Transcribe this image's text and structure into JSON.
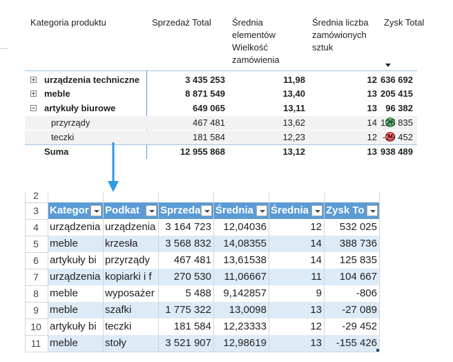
{
  "pivot": {
    "headers": {
      "category": "Kategoria produktu",
      "sales": "Sprzedaż Total",
      "avg_items_l1": "Średnia",
      "avg_items_l2": "elementów",
      "avg_items_l3": "Wielkość",
      "avg_items_l4": "zamówienia",
      "avg_orders_l1": "Średnia liczba",
      "avg_orders_l2": "zamówionych",
      "avg_orders_l3": "sztuk",
      "profit": "Zysk Total"
    },
    "rows": [
      {
        "label": "urządzenia techniczne",
        "sales": "3 435 253",
        "avg_items": "11,98",
        "avg_orders": "12",
        "profit": "636 692"
      },
      {
        "label": "meble",
        "sales": "8 871 549",
        "avg_items": "13,40",
        "avg_orders": "13",
        "profit": "205 415"
      },
      {
        "label": "artykuły biurowe",
        "sales": "649 065",
        "avg_items": "13,11",
        "avg_orders": "13",
        "profit": "96 382"
      },
      {
        "label": "przyrządy",
        "sales": "467 481",
        "avg_items": "13,62",
        "avg_orders": "14",
        "profit": "125 835",
        "kpi": "up-icon"
      },
      {
        "label": "teczki",
        "sales": "181 584",
        "avg_items": "12,23",
        "avg_orders": "12",
        "profit": "-29 452",
        "kpi": "down-icon"
      },
      {
        "label": "Suma",
        "sales": "12 955 868",
        "avg_items": "13,12",
        "avg_orders": "13",
        "profit": "938 489"
      }
    ],
    "kpi_colors": {
      "up": "#63be7b",
      "down": "#f8696b"
    }
  },
  "sheet": {
    "row_numbers": [
      "2",
      "3",
      "4",
      "5",
      "6",
      "7",
      "8",
      "9",
      "10",
      "11"
    ],
    "headers": [
      "Kategor",
      "Podkat",
      "Sprzeda",
      "Średnia",
      "Średnia",
      "Zysk To"
    ],
    "rows": [
      [
        "urządzenia",
        "urządzenia",
        "3 164 723",
        "12,04036",
        "12",
        "532 025"
      ],
      [
        "meble",
        "krzesła",
        "3 568 832",
        "14,08355",
        "14",
        "388 736"
      ],
      [
        "artykuły bi",
        "przyrządy",
        "467 481",
        "13,61538",
        "14",
        "125 835"
      ],
      [
        "urządzenia",
        "kopiarki i f",
        "270 530",
        "11,06667",
        "11",
        "104 667"
      ],
      [
        "meble",
        "wyposażer",
        "5 488",
        "9,142857",
        "9",
        "-806"
      ],
      [
        "meble",
        "szafki",
        "1 775 322",
        "13,0098",
        "13",
        "-27 089"
      ],
      [
        "artykuły bi",
        "teczki",
        "181 584",
        "12,23333",
        "12",
        "-29 452"
      ],
      [
        "meble",
        "stoły",
        "3 521 907",
        "12,98619",
        "13",
        "-155 426"
      ]
    ],
    "colors": {
      "header": "#5b9bd5",
      "band": "#ddebf7"
    }
  }
}
